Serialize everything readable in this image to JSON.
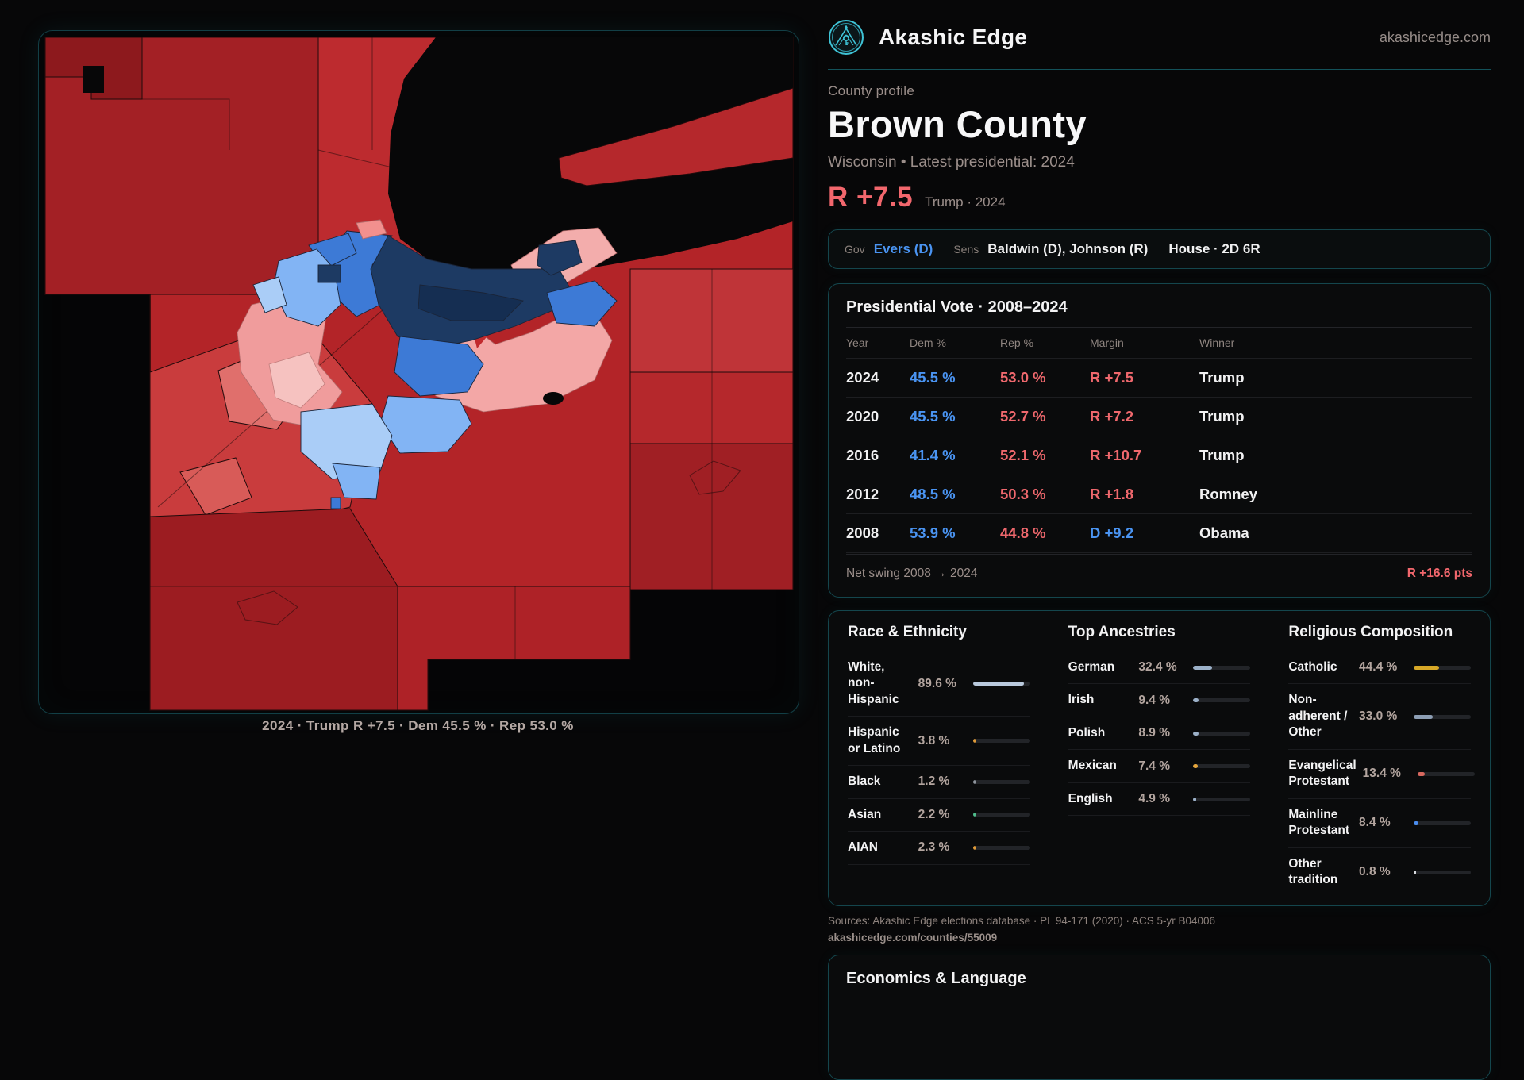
{
  "brand": {
    "name": "Akashic Edge",
    "domain": "akashicedge.com"
  },
  "map": {
    "caption": "2024 · Trump R +7.5 · Dem 45.5 % · Rep 53.0 %"
  },
  "profile": {
    "kicker": "County profile",
    "title": "Brown County",
    "subtitle": "Wisconsin • Latest presidential: 2024",
    "margin": "R +7.5",
    "margin_note": "Trump · 2024"
  },
  "officials": {
    "gov_label": "Gov",
    "gov": "Evers (D)",
    "sens_label": "Sens",
    "sens": "Baldwin (D), Johnson (R)",
    "house": "House · 2D 6R"
  },
  "presidential": {
    "title": "Presidential Vote · 2008–2024",
    "headers": {
      "year": "Year",
      "dem": "Dem %",
      "rep": "Rep %",
      "margin": "Margin",
      "winner": "Winner"
    },
    "rows": [
      {
        "year": "2024",
        "dem": "45.5 %",
        "rep": "53.0 %",
        "margin": "R +7.5",
        "party": "rep",
        "winner": "Trump"
      },
      {
        "year": "2020",
        "dem": "45.5 %",
        "rep": "52.7 %",
        "margin": "R +7.2",
        "party": "rep",
        "winner": "Trump"
      },
      {
        "year": "2016",
        "dem": "41.4 %",
        "rep": "52.1 %",
        "margin": "R +10.7",
        "party": "rep",
        "winner": "Trump"
      },
      {
        "year": "2012",
        "dem": "48.5 %",
        "rep": "50.3 %",
        "margin": "R +1.8",
        "party": "rep",
        "winner": "Romney"
      },
      {
        "year": "2008",
        "dem": "53.9 %",
        "rep": "44.8 %",
        "margin": "D +9.2",
        "party": "dem",
        "winner": "Obama"
      }
    ],
    "swing_label": "Net swing 2008 → 2024",
    "swing_value": "R +16.6 pts"
  },
  "demographics": {
    "race": {
      "title": "Race & Ethnicity",
      "rows": [
        {
          "label": "White, non-Hispanic",
          "value": "89.6 %",
          "pct": 89.6,
          "color": "#b9c9dd"
        },
        {
          "label": "Hispanic or Latino",
          "value": "3.8 %",
          "pct": 3.8,
          "color": "#e09a38"
        },
        {
          "label": "Black",
          "value": "1.2 %",
          "pct": 1.2,
          "color": "#8f959d"
        },
        {
          "label": "Asian",
          "value": "2.2 %",
          "pct": 2.2,
          "color": "#4fbd8c"
        },
        {
          "label": "AIAN",
          "value": "2.3 %",
          "pct": 2.3,
          "color": "#e09a38"
        }
      ]
    },
    "ancestries": {
      "title": "Top Ancestries",
      "rows": [
        {
          "label": "German",
          "value": "32.4 %",
          "pct": 32.4,
          "color": "#9cb1c9"
        },
        {
          "label": "Irish",
          "value": "9.4 %",
          "pct": 9.4,
          "color": "#9cb1c9"
        },
        {
          "label": "Polish",
          "value": "8.9 %",
          "pct": 8.9,
          "color": "#9cb1c9"
        },
        {
          "label": "Mexican",
          "value": "7.4 %",
          "pct": 7.4,
          "color": "#e6a63c"
        },
        {
          "label": "English",
          "value": "4.9 %",
          "pct": 4.9,
          "color": "#9cb1c9"
        }
      ]
    },
    "religion": {
      "title": "Religious Composition",
      "rows": [
        {
          "label": "Catholic",
          "value": "44.4 %",
          "pct": 44.4,
          "color": "#d7a827"
        },
        {
          "label": "Non-adherent / Other",
          "value": "33.0 %",
          "pct": 33.0,
          "color": "#8d9eb4"
        },
        {
          "label": "Evangelical Protestant",
          "value": "13.4 %",
          "pct": 13.4,
          "color": "#d8685f"
        },
        {
          "label": "Mainline Protestant",
          "value": "8.4 %",
          "pct": 8.4,
          "color": "#4a8df0"
        },
        {
          "label": "Other tradition",
          "value": "0.8 %",
          "pct": 0.8,
          "color": "#d9dce0"
        }
      ]
    }
  },
  "sources": {
    "line1": "Sources: Akashic Edge elections database · PL 94-171 (2020) · ACS 5-yr B04006",
    "line2": "akashicedge.com/counties/55009"
  },
  "economics": {
    "title": "Economics & Language"
  },
  "colors": {
    "accent_teal": "#3fc3d6",
    "dem_blue": "#4a94f2",
    "rep_red": "#ef686d",
    "map_red_base": "#b32428",
    "map_navy": "#1d3a63",
    "map_pink": "#f3a7a6"
  }
}
